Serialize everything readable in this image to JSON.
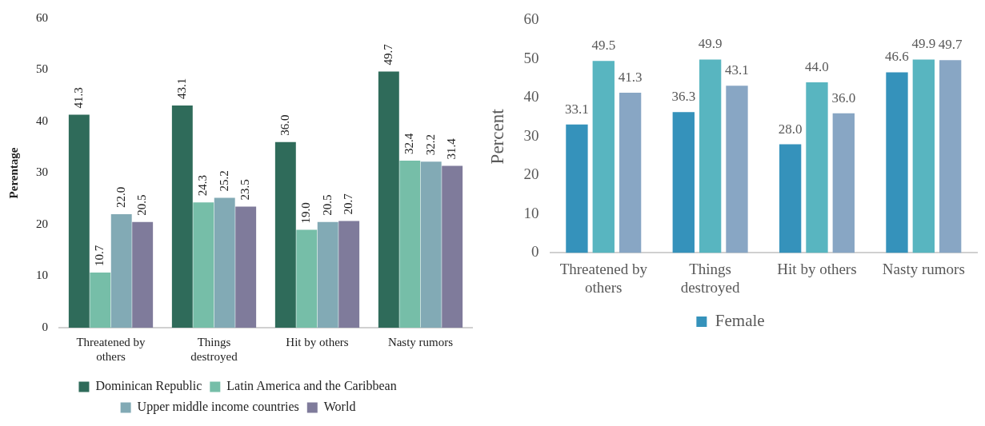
{
  "chart_data": [
    {
      "type": "bar",
      "ylabel": "Perentage",
      "categories": [
        "Threatened by others",
        "Things destroyed",
        "Hit by others",
        "Nasty rumors"
      ],
      "ylim": [
        0,
        60
      ],
      "yticks": [
        0,
        10,
        20,
        30,
        40,
        50,
        60
      ],
      "legend": "bottom",
      "series": [
        {
          "name": "Dominican Republic",
          "color": "#2f6b5a",
          "values": [
            41.3,
            43.1,
            36.0,
            49.7
          ],
          "value_labels": [
            "41.3",
            "43.1",
            "36.0",
            "49.7"
          ]
        },
        {
          "name": "Latin America and the Caribbean",
          "color": "#76bea8",
          "values": [
            10.7,
            24.3,
            19.0,
            32.4
          ],
          "value_labels": [
            "10.7",
            "24.3",
            "19.0",
            "32.4"
          ]
        },
        {
          "name": "Upper middle income countries",
          "color": "#82aab5",
          "values": [
            22.0,
            25.2,
            20.5,
            32.2
          ],
          "value_labels": [
            "22.0",
            "25.2",
            "20.5",
            "32.2"
          ]
        },
        {
          "name": "World",
          "color": "#7f7b9b",
          "values": [
            20.5,
            23.5,
            20.7,
            31.4
          ],
          "value_labels": [
            "20.5",
            "23.5",
            "20.7",
            "31.4"
          ]
        }
      ]
    },
    {
      "type": "bar",
      "ylabel": "Percent",
      "categories": [
        "Threatened by others",
        "Things destroyed",
        "Hit by others",
        "Nasty rumors"
      ],
      "ylim": [
        0,
        60
      ],
      "yticks": [
        0,
        10,
        20,
        30,
        40,
        50,
        60
      ],
      "legend": "bottom",
      "series": [
        {
          "name": "Female",
          "color": "#3592bb",
          "values": [
            33.1,
            36.3,
            28.0,
            46.6
          ],
          "value_labels": [
            "33.1",
            "36.3",
            "28.0",
            "46.6"
          ]
        },
        {
          "color": "#58b5c0",
          "values": [
            49.5,
            49.9,
            44.0,
            49.9
          ],
          "value_labels": [
            "49.5",
            "49.9",
            "44.0",
            "49.9"
          ]
        },
        {
          "color": "#88a6c4",
          "values": [
            41.3,
            43.1,
            36.0,
            49.7
          ],
          "value_labels": [
            "41.3",
            "43.1",
            "36.0",
            "49.7"
          ]
        }
      ]
    }
  ]
}
